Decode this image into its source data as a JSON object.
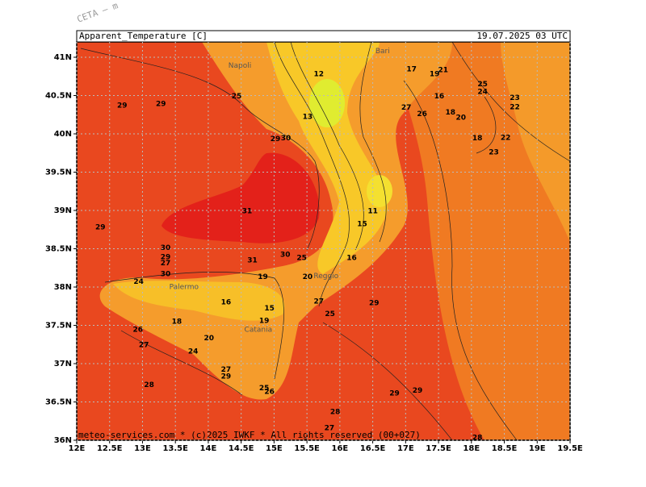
{
  "map": {
    "watermark": "CETA – m",
    "title": "Apparent_Temperature [C]",
    "timestamp": "19.07.2025 03 UTC",
    "footer": "meteo-services.com * (c)2025 IWKF * All rights reserved (00+027)",
    "xlim": [
      12,
      19.5
    ],
    "ylim": [
      36,
      41.2
    ],
    "grid": true,
    "xticks": [
      {
        "value": 12,
        "label": "12E"
      },
      {
        "value": 12.5,
        "label": "12.5E"
      },
      {
        "value": 13,
        "label": "13E"
      },
      {
        "value": 13.5,
        "label": "13.5E"
      },
      {
        "value": 14,
        "label": "14E"
      },
      {
        "value": 14.5,
        "label": "14.5E"
      },
      {
        "value": 15,
        "label": "15E"
      },
      {
        "value": 15.5,
        "label": "15.5E"
      },
      {
        "value": 16,
        "label": "16E"
      },
      {
        "value": 16.5,
        "label": "16.5E"
      },
      {
        "value": 17,
        "label": "17E"
      },
      {
        "value": 17.5,
        "label": "17.5E"
      },
      {
        "value": 18,
        "label": "18E"
      },
      {
        "value": 18.5,
        "label": "18.5E"
      },
      {
        "value": 19,
        "label": "19E"
      },
      {
        "value": 19.5,
        "label": "19.5E"
      }
    ],
    "yticks": [
      {
        "value": 36,
        "label": "36N"
      },
      {
        "value": 36.5,
        "label": "36.5N"
      },
      {
        "value": 37,
        "label": "37N"
      },
      {
        "value": 37.5,
        "label": "37.5N"
      },
      {
        "value": 38,
        "label": "38N"
      },
      {
        "value": 38.5,
        "label": "38.5N"
      },
      {
        "value": 39,
        "label": "39N"
      },
      {
        "value": 39.5,
        "label": "39.5N"
      },
      {
        "value": 40,
        "label": "40N"
      },
      {
        "value": 40.5,
        "label": "40.5N"
      },
      {
        "value": 41,
        "label": "41N"
      }
    ],
    "places": [
      {
        "name": "Napoli",
        "lon": 14.48,
        "lat": 40.89
      },
      {
        "name": "Bari",
        "lon": 16.65,
        "lat": 41.08
      },
      {
        "name": "Palermo",
        "lon": 13.63,
        "lat": 38.0
      },
      {
        "name": "Catania",
        "lon": 14.76,
        "lat": 37.44
      },
      {
        "name": "Reggio",
        "lon": 15.79,
        "lat": 38.14
      }
    ],
    "contour_labels": [
      {
        "value": 29,
        "lon": 12.69,
        "lat": 40.37
      },
      {
        "value": 29,
        "lon": 13.28,
        "lat": 40.39
      },
      {
        "value": 29,
        "lon": 12.36,
        "lat": 38.78
      },
      {
        "value": 12,
        "lon": 15.68,
        "lat": 40.78
      },
      {
        "value": 17,
        "lon": 17.09,
        "lat": 40.84
      },
      {
        "value": 19,
        "lon": 17.44,
        "lat": 40.78
      },
      {
        "value": 21,
        "lon": 17.57,
        "lat": 40.83
      },
      {
        "value": 25,
        "lon": 18.17,
        "lat": 40.65
      },
      {
        "value": 24,
        "lon": 18.17,
        "lat": 40.55
      },
      {
        "value": 23,
        "lon": 18.66,
        "lat": 40.47
      },
      {
        "value": 22,
        "lon": 18.66,
        "lat": 40.35
      },
      {
        "value": 16,
        "lon": 17.51,
        "lat": 40.49
      },
      {
        "value": 27,
        "lon": 17.01,
        "lat": 40.34
      },
      {
        "value": 26,
        "lon": 17.25,
        "lat": 40.26
      },
      {
        "value": 18,
        "lon": 17.68,
        "lat": 40.28
      },
      {
        "value": 20,
        "lon": 17.84,
        "lat": 40.21
      },
      {
        "value": 22,
        "lon": 18.52,
        "lat": 39.95
      },
      {
        "value": 18,
        "lon": 18.09,
        "lat": 39.94
      },
      {
        "value": 23,
        "lon": 18.34,
        "lat": 39.76
      },
      {
        "value": 13,
        "lon": 15.51,
        "lat": 40.22
      },
      {
        "value": 30,
        "lon": 15.18,
        "lat": 39.94
      },
      {
        "value": 29,
        "lon": 15.02,
        "lat": 39.93
      },
      {
        "value": 25,
        "lon": 14.43,
        "lat": 40.49
      },
      {
        "value": 31,
        "lon": 14.59,
        "lat": 38.99
      },
      {
        "value": 15,
        "lon": 16.34,
        "lat": 38.82
      },
      {
        "value": 11,
        "lon": 16.5,
        "lat": 38.99
      },
      {
        "value": 30,
        "lon": 13.35,
        "lat": 38.51
      },
      {
        "value": 29,
        "lon": 13.35,
        "lat": 38.39
      },
      {
        "value": 27,
        "lon": 13.35,
        "lat": 38.31
      },
      {
        "value": 30,
        "lon": 15.17,
        "lat": 38.42
      },
      {
        "value": 31,
        "lon": 14.67,
        "lat": 38.35
      },
      {
        "value": 25,
        "lon": 15.42,
        "lat": 38.38
      },
      {
        "value": 16,
        "lon": 16.18,
        "lat": 38.38
      },
      {
        "value": 20,
        "lon": 15.51,
        "lat": 38.13
      },
      {
        "value": 19,
        "lon": 14.83,
        "lat": 38.13
      },
      {
        "value": 16,
        "lon": 14.27,
        "lat": 37.8
      },
      {
        "value": 15,
        "lon": 14.93,
        "lat": 37.72
      },
      {
        "value": 19,
        "lon": 14.85,
        "lat": 37.56
      },
      {
        "value": 18,
        "lon": 13.52,
        "lat": 37.55
      },
      {
        "value": 27,
        "lon": 15.68,
        "lat": 37.81
      },
      {
        "value": 25,
        "lon": 15.85,
        "lat": 37.65
      },
      {
        "value": 29,
        "lon": 16.52,
        "lat": 37.79
      },
      {
        "value": 26,
        "lon": 12.93,
        "lat": 37.44
      },
      {
        "value": 27,
        "lon": 13.02,
        "lat": 37.24
      },
      {
        "value": 24,
        "lon": 13.77,
        "lat": 37.16
      },
      {
        "value": 20,
        "lon": 14.01,
        "lat": 37.33
      },
      {
        "value": 27,
        "lon": 14.27,
        "lat": 36.92
      },
      {
        "value": 29,
        "lon": 14.27,
        "lat": 36.83
      },
      {
        "value": 28,
        "lon": 13.1,
        "lat": 36.72
      },
      {
        "value": 25,
        "lon": 14.85,
        "lat": 36.68
      },
      {
        "value": 26,
        "lon": 14.93,
        "lat": 36.63
      },
      {
        "value": 29,
        "lon": 16.83,
        "lat": 36.61
      },
      {
        "value": 29,
        "lon": 17.18,
        "lat": 36.65
      },
      {
        "value": 28,
        "lon": 15.93,
        "lat": 36.37
      },
      {
        "value": 27,
        "lon": 15.84,
        "lat": 36.16
      },
      {
        "value": 28,
        "lon": 18.09,
        "lat": 36.03
      },
      {
        "value": 24,
        "lon": 12.94,
        "lat": 38.07
      },
      {
        "value": 30,
        "lon": 13.35,
        "lat": 38.17
      }
    ]
  }
}
